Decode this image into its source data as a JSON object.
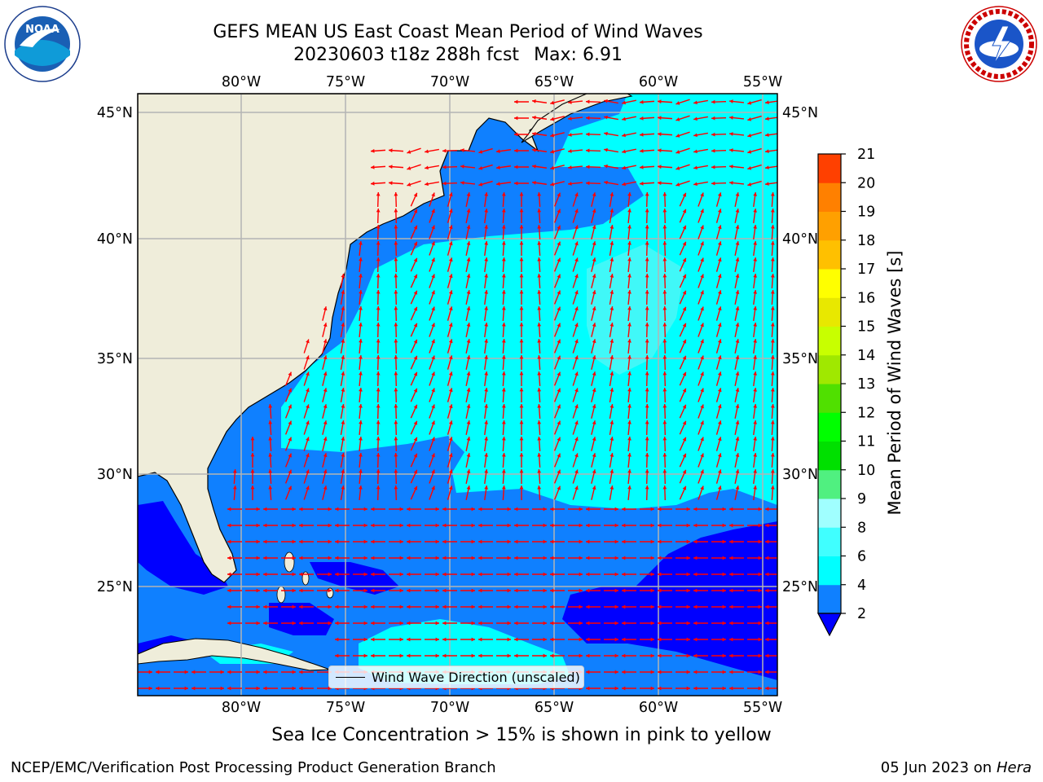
{
  "title": {
    "line1": "GEFS MEAN US East Coast Mean Period of Wind Waves",
    "run": "20230603 t18z 288h fcst",
    "max": "Max: 6.91"
  },
  "map": {
    "lon_ticks": [
      "80°W",
      "75°W",
      "70°W",
      "65°W",
      "60°W",
      "55°W"
    ],
    "lat_ticks": [
      "45°N",
      "40°N",
      "35°N",
      "30°N",
      "25°N"
    ],
    "legend_label": "Wind Wave Direction (unscaled)",
    "colors": {
      "land": "#efedda",
      "ocean_2_4": "#0f80ff",
      "ocean_4_6": "#00ffff",
      "ocean_6_8": "#40f8f8",
      "below_2": "#0000ff",
      "arrow": "#ff0000",
      "grid": "#b4b4b4"
    }
  },
  "colorbar": {
    "label": "Mean Period of Wind Waves [s]",
    "ticks": [
      "2",
      "4",
      "6",
      "8",
      "9",
      "10",
      "11",
      "12",
      "13",
      "14",
      "15",
      "16",
      "17",
      "18",
      "19",
      "20",
      "21"
    ],
    "colors": [
      "#0f80ff",
      "#00ffff",
      "#40ffff",
      "#a0ffff",
      "#50f080",
      "#00e000",
      "#00ff00",
      "#50e000",
      "#a0e800",
      "#c8ff00",
      "#e8e800",
      "#ffff00",
      "#ffc000",
      "#ffa000",
      "#ff8000",
      "#ff4000",
      "#ff0000"
    ],
    "extend_below_color": "#0000ff"
  },
  "subnote": "Sea Ice Concentration > 15% is shown in pink to yellow",
  "footer": {
    "left": "NCEP/EMC/Verification Post Processing Product Generation Branch",
    "date": "05 Jun 2023 on",
    "machine": "Hera"
  },
  "logos": {
    "left": "noaa-logo",
    "right": "nws-logo"
  }
}
